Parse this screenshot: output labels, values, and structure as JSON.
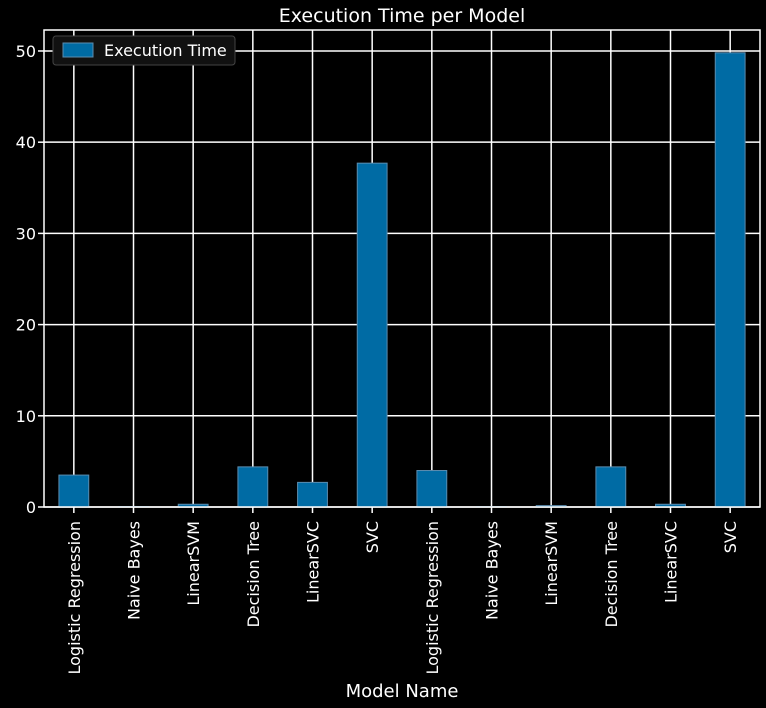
{
  "chart_data": {
    "type": "bar",
    "title": "Execution Time per Model",
    "xlabel": "Model Name",
    "ylabel": "",
    "categories": [
      "Logistic Regression",
      "Naive Bayes",
      "LinearSVM",
      "Decision Tree",
      "LinearSVC",
      "SVC",
      "Logistic Regression",
      "Naive Bayes",
      "LinearSVM",
      "Decision Tree",
      "LinearSVC",
      "SVC"
    ],
    "series": [
      {
        "name": "Execution Time",
        "values": [
          3.5,
          0.05,
          0.3,
          4.4,
          2.7,
          37.7,
          4.0,
          0.04,
          0.15,
          4.4,
          0.3,
          49.8
        ]
      }
    ],
    "yticks": [
      "0",
      "10",
      "20",
      "30",
      "40",
      "50"
    ],
    "ylim": [
      0,
      52.3
    ],
    "grid": true,
    "legend_position": "top-left",
    "colors": {
      "bar": "#006ba4",
      "bar_edge": "#5b8db0",
      "background": "#000000",
      "grid": "#ffffff",
      "text": "#ffffff"
    }
  }
}
